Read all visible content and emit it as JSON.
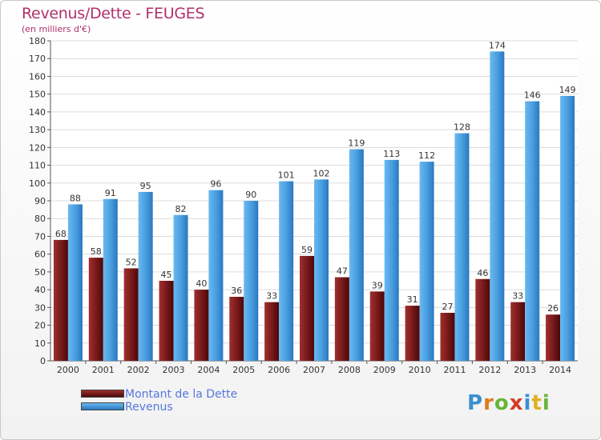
{
  "chart_data": {
    "type": "bar",
    "title": "Revenus/Dette - FEUGES",
    "subtitle": "(en milliers d'€)",
    "categories": [
      "2000",
      "2001",
      "2002",
      "2003",
      "2004",
      "2005",
      "2006",
      "2007",
      "2008",
      "2009",
      "2010",
      "2011",
      "2012",
      "2013",
      "2014"
    ],
    "series": [
      {
        "name": "Montant de la Dette",
        "color": "#7a1a1a",
        "values": [
          68,
          58,
          52,
          45,
          40,
          36,
          33,
          59,
          47,
          39,
          31,
          27,
          46,
          33,
          26
        ]
      },
      {
        "name": "Revenus",
        "color": "#4a9fe0",
        "values": [
          88,
          91,
          95,
          82,
          96,
          90,
          101,
          102,
          119,
          113,
          112,
          128,
          174,
          146,
          149
        ]
      }
    ],
    "ylim": [
      0,
      180
    ],
    "yticks": [
      0,
      10,
      20,
      30,
      40,
      50,
      60,
      70,
      80,
      90,
      100,
      110,
      120,
      130,
      140,
      150,
      160,
      170,
      180
    ],
    "grid": true,
    "legend_position": "bottom-left"
  },
  "logo": {
    "text": "Proxiti"
  }
}
